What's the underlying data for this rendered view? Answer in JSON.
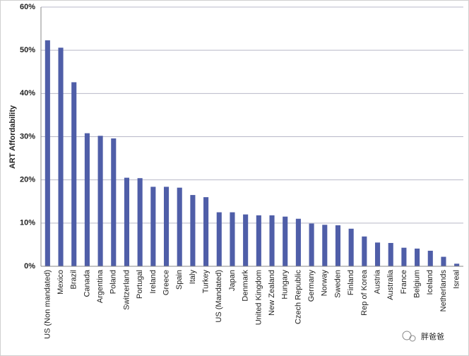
{
  "chart_data": {
    "type": "bar",
    "y_axis_label": "ART Affordability",
    "categories": [
      "US (Non mandated)",
      "Mexico",
      "Brazil",
      "Canada",
      "Argentina",
      "Poland",
      "Switzerland",
      "Portugal",
      "Ireland",
      "Greece",
      "Spain",
      "Italy",
      "Turkey",
      "US (Mandated)",
      "Japan",
      "Denmark",
      "United Kingdom",
      "New Zealand",
      "Hungary",
      "Czech Republic",
      "Germany",
      "Norway",
      "Sweden",
      "Finland",
      "Rep of Korea",
      "Austria",
      "Australia",
      "France",
      "Belgium",
      "Iceland",
      "Netherlands",
      "Isreal"
    ],
    "values": [
      52.3,
      50.6,
      42.6,
      30.8,
      30.2,
      29.6,
      20.5,
      20.4,
      18.4,
      18.4,
      18.2,
      16.5,
      16.0,
      12.5,
      12.5,
      12.0,
      11.8,
      11.8,
      11.5,
      11.0,
      9.9,
      9.6,
      9.5,
      8.7,
      6.9,
      5.5,
      5.4,
      4.3,
      4.1,
      3.6,
      2.2,
      0.6
    ],
    "color": "#4f5ea8",
    "ylim": [
      0,
      60
    ],
    "yticks": [
      {
        "value": 0,
        "label": "0%"
      },
      {
        "value": 10,
        "label": "10%"
      },
      {
        "value": 20,
        "label": "20%"
      },
      {
        "value": 30,
        "label": "30%"
      },
      {
        "value": 40,
        "label": "40%"
      },
      {
        "value": 50,
        "label": "50%"
      },
      {
        "value": 60,
        "label": "60%"
      }
    ],
    "grid": true
  },
  "watermark": "胖爸爸"
}
